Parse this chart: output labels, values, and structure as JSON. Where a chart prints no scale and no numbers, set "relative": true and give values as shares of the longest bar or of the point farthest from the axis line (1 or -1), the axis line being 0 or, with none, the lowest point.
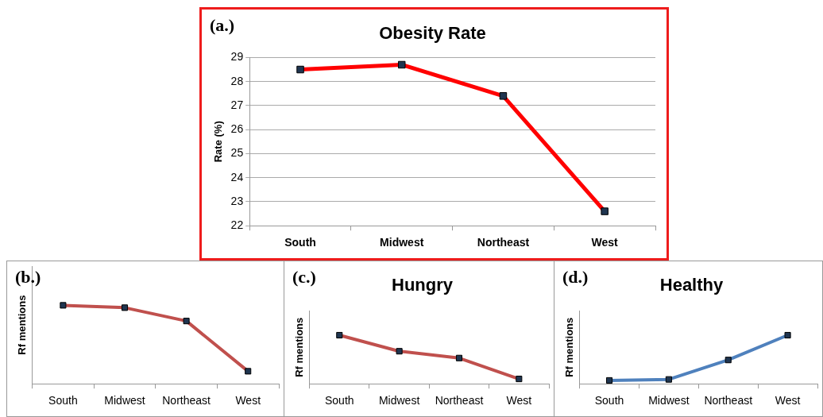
{
  "chart_data": [
    {
      "type": "line",
      "title": "Obesity Rate",
      "ylabel": "Rate (%)",
      "categories": [
        "South",
        "Midwest",
        "Northeast",
        "West"
      ],
      "values": [
        28.5,
        28.7,
        27.4,
        22.6
      ],
      "color": "#ff0000",
      "ylim": [
        22,
        29
      ],
      "yticks": [
        22,
        23,
        24,
        25,
        26,
        27,
        28,
        29
      ],
      "grid": "y",
      "marker": "square",
      "legend": false,
      "annotations": [
        "(a.)"
      ]
    },
    {
      "type": "line",
      "ylabel": "Rf mentions",
      "categories": [
        "South",
        "Midwest",
        "Northeast",
        "West"
      ],
      "values": [
        1,
        0.97,
        0.8,
        0.16
      ],
      "color": "#c0504d",
      "relative": true,
      "marker": "square",
      "legend": false,
      "annotations": [
        "(b.)"
      ]
    },
    {
      "type": "line",
      "title": "Hungry",
      "ylabel": "Rf mentions",
      "categories": [
        "South",
        "Midwest",
        "Northeast",
        "West"
      ],
      "values": [
        1,
        0.67,
        0.53,
        0.1
      ],
      "color": "#c0504d",
      "relative": true,
      "marker": "square",
      "legend": false,
      "annotations": [
        "(c.)"
      ]
    },
    {
      "type": "line",
      "title": "Healthy",
      "ylabel": "Rf mentions",
      "categories": [
        "South",
        "Midwest",
        "Northeast",
        "West"
      ],
      "values": [
        0.07,
        0.09,
        0.49,
        1
      ],
      "color": "#4f81bd",
      "relative": true,
      "marker": "square",
      "legend": false,
      "annotations": [
        "(d.)"
      ]
    }
  ]
}
